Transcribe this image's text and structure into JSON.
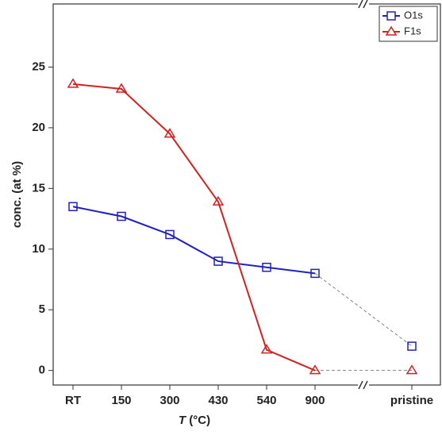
{
  "chart_data": {
    "type": "line",
    "y_label": "conc. (at %)",
    "x_label_symbol": "T",
    "x_label_unit": "(°C)",
    "categories": [
      "RT",
      "150",
      "300",
      "430",
      "540",
      "900",
      null,
      "pristine"
    ],
    "series": [
      {
        "name": "O1s",
        "color": "#2020c0",
        "marker": "square",
        "values": [
          13.5,
          12.7,
          11.2,
          9.0,
          8.5,
          8.0,
          null,
          2.0
        ]
      },
      {
        "name": "F1s",
        "color": "#d42020",
        "marker": "triangle",
        "values": [
          23.6,
          23.2,
          19.5,
          13.9,
          1.7,
          0.0,
          null,
          0.0
        ]
      }
    ],
    "ylim": [
      -1.2,
      30.2
    ],
    "yticks": [
      0,
      5,
      10,
      15,
      20,
      25
    ],
    "legend": "upper right"
  }
}
